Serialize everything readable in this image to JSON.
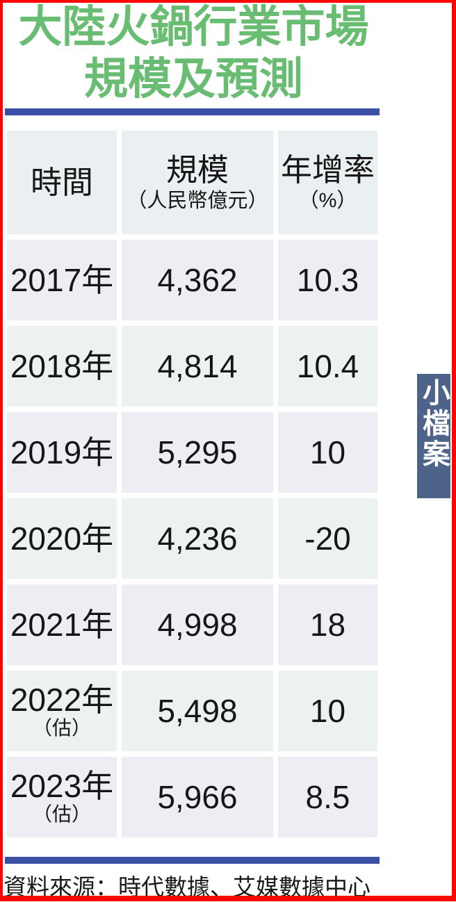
{
  "title": {
    "line1": "大陸火鍋行業市場",
    "line2": "規模及預測"
  },
  "badge": {
    "text": "小檔案"
  },
  "source": "資料來源：時代數據、艾媒數據中心",
  "table": {
    "columns": [
      {
        "label": "時間",
        "sublabel": ""
      },
      {
        "label": "規模",
        "sublabel": "（人民幣億元）"
      },
      {
        "label": "年增率",
        "sublabel": "（%）"
      }
    ],
    "rows": [
      {
        "time": "2017年",
        "note": "",
        "scale": "4,362",
        "growth": "10.3"
      },
      {
        "time": "2018年",
        "note": "",
        "scale": "4,814",
        "growth": "10.4"
      },
      {
        "time": "2019年",
        "note": "",
        "scale": "5,295",
        "growth": "10"
      },
      {
        "time": "2020年",
        "note": "",
        "scale": "4,236",
        "growth": "-20"
      },
      {
        "time": "2021年",
        "note": "",
        "scale": "4,998",
        "growth": "18"
      },
      {
        "time": "2022年",
        "note": "（估）",
        "scale": "5,498",
        "growth": "10"
      },
      {
        "time": "2023年",
        "note": "（估）",
        "scale": "5,966",
        "growth": "8.5"
      }
    ]
  },
  "chart_data": {
    "type": "table",
    "title": "大陸火鍋行業市場規模及預測",
    "columns": [
      "時間",
      "規模（人民幣億元）",
      "年增率（%）"
    ],
    "x": [
      "2017年",
      "2018年",
      "2019年",
      "2020年",
      "2021年",
      "2022年（估）",
      "2023年（估）"
    ],
    "series": [
      {
        "name": "規模（人民幣億元）",
        "values": [
          4362,
          4814,
          5295,
          4236,
          4998,
          5498,
          5966
        ]
      },
      {
        "name": "年增率（%）",
        "values": [
          10.3,
          10.4,
          10,
          -20,
          18,
          10,
          8.5
        ]
      }
    ],
    "source": "資料來源：時代數據、艾媒數據中心"
  },
  "colors": {
    "title_green": "#69bd72",
    "rule_blue": "#3a50a4",
    "frame_red": "#fb0505",
    "header_bg": "#eaeff2",
    "row_bg_a": "#efedf4",
    "row_bg_b": "#ecf2f1",
    "badge_bg": "#4d638a",
    "text": "#161616"
  }
}
